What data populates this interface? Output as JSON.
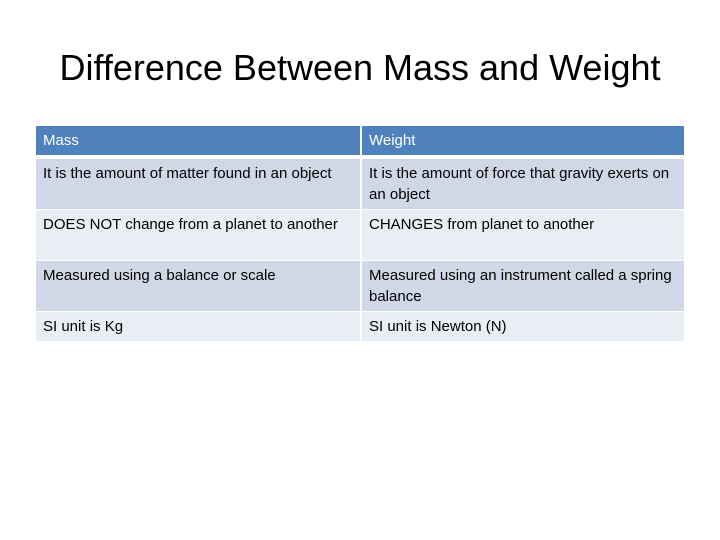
{
  "slide": {
    "title": "Difference Between Mass and Weight"
  },
  "table": {
    "headers": [
      "Mass",
      "Weight"
    ],
    "rows": [
      [
        "It is the amount of matter found in an object",
        "It is the amount of force that gravity exerts on an object"
      ],
      [
        "DOES NOT change from a planet to another",
        "CHANGES from planet to another"
      ],
      [
        "Measured using a balance or scale",
        "Measured using an instrument called a spring balance"
      ],
      [
        "SI unit is Kg",
        "SI unit is Newton (N)"
      ]
    ]
  },
  "colors": {
    "header_fill": "#4f81bd",
    "row_band_dark": "#d0d8e8",
    "row_band_light": "#e9edf4"
  }
}
